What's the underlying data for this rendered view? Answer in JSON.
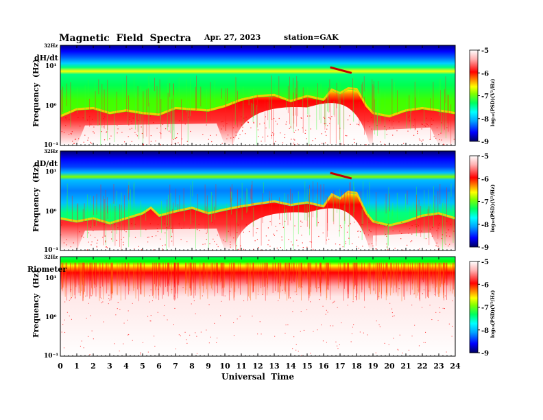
{
  "header": {
    "title": "Magnetic  Field  Spectra",
    "date": "Apr. 27, 2023",
    "station": "station=GAK"
  },
  "x_axis": {
    "label": "Universal  Time",
    "ticks": [
      "0",
      "1",
      "2",
      "3",
      "4",
      "5",
      "6",
      "7",
      "8",
      "9",
      "10",
      "11",
      "12",
      "13",
      "14",
      "15",
      "16",
      "17",
      "18",
      "19",
      "20",
      "21",
      "22",
      "23",
      "24"
    ]
  },
  "colorbar": {
    "label": "log₁₀(PSD)(V²/Hz)",
    "ticks": [
      "-5",
      "-6",
      "-7",
      "-8",
      "-9"
    ],
    "range": [
      -9,
      -5
    ],
    "stops": [
      "#000060",
      "#0000ff",
      "#00a0ff",
      "#00ffff",
      "#00ff60",
      "#80ff00",
      "#ffff00",
      "#ff8000",
      "#ff0000",
      "#ffb0b0",
      "#ffffff"
    ]
  },
  "chart_data": [
    {
      "type": "heatmap",
      "panel_label": "dH/dt",
      "ylabel": "Frequency  (Hz)",
      "yticks": [
        "32Hz",
        "10¹",
        "10⁰",
        "10⁻¹"
      ],
      "xlim": [
        0,
        24
      ],
      "ylim_hz": [
        0.1,
        32
      ],
      "scale": "log",
      "noise_floor_hz": [
        [
          0,
          0.5
        ],
        [
          1,
          0.75
        ],
        [
          2,
          0.8
        ],
        [
          3,
          0.6
        ],
        [
          4,
          0.7
        ],
        [
          5,
          0.6
        ],
        [
          6,
          0.55
        ],
        [
          7,
          0.8
        ],
        [
          8,
          0.75
        ],
        [
          9,
          0.7
        ],
        [
          10,
          0.9
        ],
        [
          11,
          1.3
        ],
        [
          12,
          1.6
        ],
        [
          13,
          1.7
        ],
        [
          14,
          1.2
        ],
        [
          15,
          1.6
        ],
        [
          16,
          1.3
        ],
        [
          16.5,
          2.3
        ],
        [
          17,
          1.9
        ],
        [
          17.5,
          2.5
        ],
        [
          18,
          2.4
        ],
        [
          18.6,
          0.9
        ],
        [
          19,
          0.6
        ],
        [
          20,
          0.5
        ],
        [
          21,
          0.7
        ],
        [
          22,
          0.8
        ],
        [
          23,
          0.7
        ],
        [
          24,
          0.6
        ]
      ]
    },
    {
      "type": "heatmap",
      "panel_label": "dD/dt",
      "ylabel": "Frequency  (Hz)",
      "yticks": [
        "32Hz",
        "10¹",
        "10⁰",
        "10⁻¹"
      ],
      "xlim": [
        0,
        24
      ],
      "ylim_hz": [
        0.1,
        32
      ],
      "scale": "log",
      "noise_floor_hz": [
        [
          0,
          0.6
        ],
        [
          1,
          0.5
        ],
        [
          2,
          0.6
        ],
        [
          3,
          0.45
        ],
        [
          4,
          0.6
        ],
        [
          5,
          0.8
        ],
        [
          5.5,
          1.1
        ],
        [
          6,
          0.7
        ],
        [
          7,
          0.9
        ],
        [
          8,
          1.1
        ],
        [
          9,
          0.8
        ],
        [
          10,
          1.0
        ],
        [
          11,
          1.2
        ],
        [
          12,
          1.4
        ],
        [
          13,
          1.6
        ],
        [
          14,
          1.3
        ],
        [
          15,
          1.5
        ],
        [
          16,
          1.2
        ],
        [
          16.5,
          2.4
        ],
        [
          17,
          1.9
        ],
        [
          17.5,
          2.8
        ],
        [
          18,
          2.6
        ],
        [
          18.6,
          0.8
        ],
        [
          19,
          0.5
        ],
        [
          20,
          0.4
        ],
        [
          21,
          0.5
        ],
        [
          22,
          0.7
        ],
        [
          23,
          0.8
        ],
        [
          24,
          0.6
        ]
      ]
    },
    {
      "type": "heatmap",
      "panel_label": "Riometer",
      "ylabel": "Frequency  (Hz)",
      "yticks": [
        "32Hz",
        "10¹",
        "10⁰",
        "10⁻¹"
      ],
      "xlim": [
        0,
        24
      ],
      "ylim_hz": [
        0.1,
        32
      ],
      "scale": "log"
    }
  ]
}
